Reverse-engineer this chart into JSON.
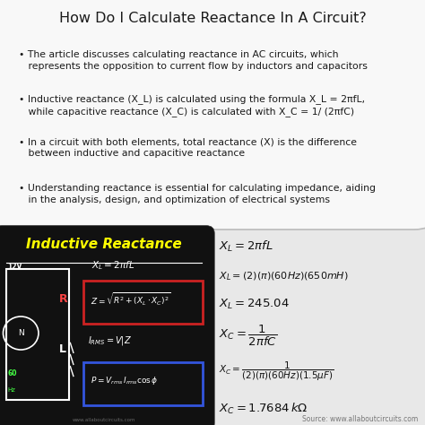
{
  "title": "How Do I Calculate Reactance In A Circuit?",
  "title_fontsize": 11.5,
  "bg_color": "#e8e8e8",
  "top_box_color": "#f8f8f8",
  "top_box_edge": "#bbbbbb",
  "bullet_points": [
    "• The article discusses calculating reactance in AC circuits, which\n   represents the opposition to current flow by inductors and capacitors",
    "• Inductive reactance (X_L) is calculated using the formula X_L = 2πfL,\n   while capacitive reactance (X_C) is calculated with X_C = 1/ (2πfC)",
    "• In a circuit with both elements, total reactance (X) is the difference\n   between inductive and capacitive reactance",
    "• Understanding reactance is essential for calculating impedance, aiding\n   in the analysis, design, and optimization of electrical systems"
  ],
  "bullet_fontsize": 7.8,
  "left_panel_bg": "#111111",
  "left_panel_title": "Inductive Reactance",
  "left_panel_title_color": "#ffff00",
  "source_text": "Source: www.allaboutcircuits.com",
  "source_fontsize": 5.5,
  "eq_fontsize": 9.5,
  "eq_small_fontsize": 8.0,
  "right_bg": "#d8d8d8"
}
